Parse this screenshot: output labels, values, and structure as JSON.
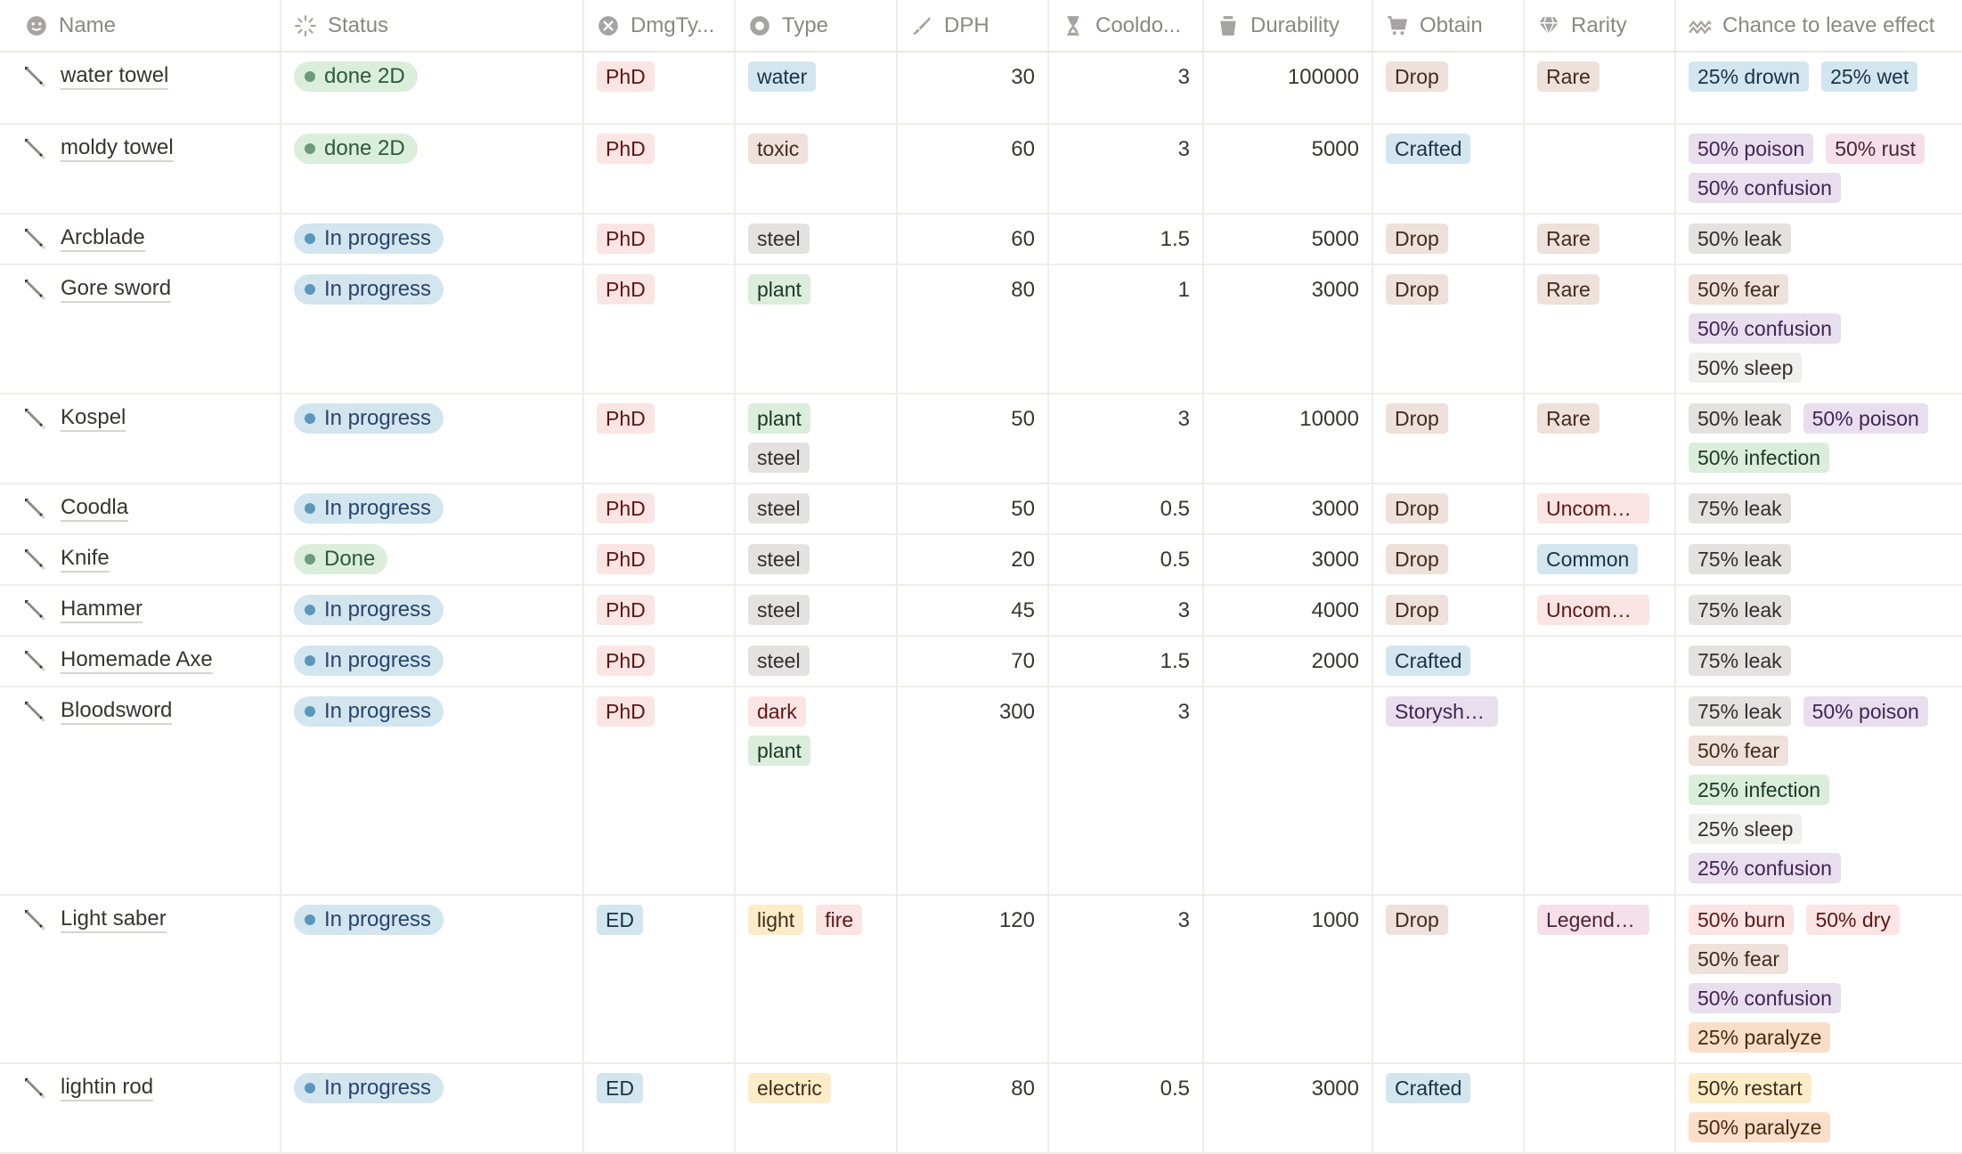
{
  "columns": [
    {
      "key": "name",
      "label": "Name",
      "icon": "face-icon"
    },
    {
      "key": "status",
      "label": "Status",
      "icon": "status-icon"
    },
    {
      "key": "dmg",
      "label": "DmgTy...",
      "icon": "x-circle-icon"
    },
    {
      "key": "type",
      "label": "Type",
      "icon": "circle-icon"
    },
    {
      "key": "dph",
      "label": "DPH",
      "icon": "knife-icon"
    },
    {
      "key": "cool",
      "label": "Cooldo...",
      "icon": "hourglass-icon"
    },
    {
      "key": "dur",
      "label": "Durability",
      "icon": "bucket-icon"
    },
    {
      "key": "obtain",
      "label": "Obtain",
      "icon": "cart-icon"
    },
    {
      "key": "rarity",
      "label": "Rarity",
      "icon": "gem-icon"
    },
    {
      "key": "chance",
      "label": "Chance to leave effect",
      "icon": "wave-icon"
    }
  ],
  "colors": {
    "red": "#fbe4e4",
    "red_text": "#5d1715",
    "blue": "#d3e5ef",
    "blue_text": "#183347",
    "gray": "#e3e2e0",
    "gray_text": "#32302c",
    "brown": "#eee0da",
    "brown_text": "#442a1e",
    "green": "#dbeddb",
    "green_text": "#1c3829",
    "yellow": "#fdecc8",
    "yellow_text": "#402c1b",
    "purple": "#e8deee",
    "purple_text": "#412454",
    "orange": "#fadec9",
    "orange_text": "#49290e",
    "pink": "#f5e0e9",
    "pink_text": "#4c2337",
    "light": "#efefed",
    "light_text": "#32302c"
  },
  "rows": [
    {
      "name": "water towel",
      "status": {
        "label": "done 2D",
        "color": "green"
      },
      "dmg": {
        "label": "PhD",
        "color": "red"
      },
      "type": [
        {
          "label": "water",
          "color": "blue"
        }
      ],
      "dph": "30",
      "cool": "3",
      "dur": "100000",
      "obtain": {
        "label": "Drop",
        "color": "brown"
      },
      "rarity": {
        "label": "Rare",
        "color": "brown"
      },
      "chance": [
        {
          "label": "25% drown",
          "color": "blue"
        },
        {
          "label": "25% wet",
          "color": "blue"
        }
      ],
      "height": 81
    },
    {
      "name": "moldy towel",
      "status": {
        "label": "done 2D",
        "color": "green"
      },
      "dmg": {
        "label": "PhD",
        "color": "red"
      },
      "type": [
        {
          "label": "toxic",
          "color": "brown"
        }
      ],
      "dph": "60",
      "cool": "3",
      "dur": "5000",
      "obtain": {
        "label": "Crafted",
        "color": "blue"
      },
      "rarity": null,
      "chance": [
        {
          "label": "50% poison",
          "color": "purple"
        },
        {
          "label": "50% rust",
          "color": "pink"
        },
        {
          "label": "50% confusion",
          "color": "purple"
        }
      ],
      "height": 101
    },
    {
      "name": "Arcblade",
      "status": {
        "label": "In progress",
        "color": "blue"
      },
      "dmg": {
        "label": "PhD",
        "color": "red"
      },
      "type": [
        {
          "label": "steel",
          "color": "gray"
        }
      ],
      "dph": "60",
      "cool": "1.5",
      "dur": "5000",
      "obtain": {
        "label": "Drop",
        "color": "brown"
      },
      "rarity": {
        "label": "Rare",
        "color": "brown"
      },
      "chance": [
        {
          "label": "50% leak",
          "color": "gray"
        }
      ],
      "height": 57
    },
    {
      "name": "Gore sword",
      "status": {
        "label": "In progress",
        "color": "blue"
      },
      "dmg": {
        "label": "PhD",
        "color": "red"
      },
      "type": [
        {
          "label": "plant",
          "color": "green"
        }
      ],
      "dph": "80",
      "cool": "1",
      "dur": "3000",
      "obtain": {
        "label": "Drop",
        "color": "brown"
      },
      "rarity": {
        "label": "Rare",
        "color": "brown"
      },
      "chance": [
        {
          "label": "50% fear",
          "color": "brown"
        },
        {
          "label": "50% confusion",
          "color": "purple"
        },
        {
          "label": "50% sleep",
          "color": "light"
        }
      ],
      "height": 145
    },
    {
      "name": "Kospel",
      "status": {
        "label": "In progress",
        "color": "blue"
      },
      "dmg": {
        "label": "PhD",
        "color": "red"
      },
      "type": [
        {
          "label": "plant",
          "color": "green"
        },
        {
          "label": "steel",
          "color": "gray"
        }
      ],
      "dph": "50",
      "cool": "3",
      "dur": "10000",
      "obtain": {
        "label": "Drop",
        "color": "brown"
      },
      "rarity": {
        "label": "Rare",
        "color": "brown"
      },
      "chance": [
        {
          "label": "50% leak",
          "color": "gray"
        },
        {
          "label": "50% poison",
          "color": "purple"
        },
        {
          "label": "50% infection",
          "color": "green"
        }
      ],
      "height": 101
    },
    {
      "name": "Coodla",
      "status": {
        "label": "In progress",
        "color": "blue"
      },
      "dmg": {
        "label": "PhD",
        "color": "red"
      },
      "type": [
        {
          "label": "steel",
          "color": "gray"
        }
      ],
      "dph": "50",
      "cool": "0.5",
      "dur": "3000",
      "obtain": {
        "label": "Drop",
        "color": "brown"
      },
      "rarity": {
        "label": "Uncomm...",
        "color": "red"
      },
      "chance": [
        {
          "label": "75% leak",
          "color": "gray"
        }
      ],
      "height": 57
    },
    {
      "name": "Knife",
      "status": {
        "label": "Done",
        "color": "green"
      },
      "dmg": {
        "label": "PhD",
        "color": "red"
      },
      "type": [
        {
          "label": "steel",
          "color": "gray"
        }
      ],
      "dph": "20",
      "cool": "0.5",
      "dur": "3000",
      "obtain": {
        "label": "Drop",
        "color": "brown"
      },
      "rarity": {
        "label": "Common",
        "color": "blue"
      },
      "chance": [
        {
          "label": "75% leak",
          "color": "gray"
        }
      ],
      "height": 57
    },
    {
      "name": "Hammer",
      "status": {
        "label": "In progress",
        "color": "blue"
      },
      "dmg": {
        "label": "PhD",
        "color": "red"
      },
      "type": [
        {
          "label": "steel",
          "color": "gray"
        }
      ],
      "dph": "45",
      "cool": "3",
      "dur": "4000",
      "obtain": {
        "label": "Drop",
        "color": "brown"
      },
      "rarity": {
        "label": "Uncomm...",
        "color": "red"
      },
      "chance": [
        {
          "label": "75% leak",
          "color": "gray"
        }
      ],
      "height": 57
    },
    {
      "name": "Homemade Axe",
      "status": {
        "label": "In progress",
        "color": "blue"
      },
      "dmg": {
        "label": "PhD",
        "color": "red"
      },
      "type": [
        {
          "label": "steel",
          "color": "gray"
        }
      ],
      "dph": "70",
      "cool": "1.5",
      "dur": "2000",
      "obtain": {
        "label": "Crafted",
        "color": "blue"
      },
      "rarity": null,
      "chance": [
        {
          "label": "75% leak",
          "color": "gray"
        }
      ],
      "height": 57
    },
    {
      "name": "Bloodsword",
      "status": {
        "label": "In progress",
        "color": "blue"
      },
      "dmg": {
        "label": "PhD",
        "color": "red"
      },
      "type": [
        {
          "label": "dark",
          "color": "red"
        },
        {
          "label": "plant",
          "color": "green"
        }
      ],
      "dph": "300",
      "cool": "3",
      "dur": "",
      "obtain": {
        "label": "Storysha...",
        "color": "purple"
      },
      "rarity": null,
      "chance": [
        {
          "label": "75% leak",
          "color": "gray"
        },
        {
          "label": "50% poison",
          "color": "purple"
        },
        {
          "label": "50% fear",
          "color": "brown"
        },
        {
          "label": "25% infection",
          "color": "green"
        },
        {
          "label": "25% sleep",
          "color": "light"
        },
        {
          "label": "25% confusion",
          "color": "purple"
        }
      ],
      "height": 234
    },
    {
      "name": "Light saber",
      "status": {
        "label": "In progress",
        "color": "blue"
      },
      "dmg": {
        "label": "ED",
        "color": "blue"
      },
      "type": [
        {
          "label": "light",
          "color": "yellow"
        },
        {
          "label": "fire",
          "color": "red"
        }
      ],
      "dph": "120",
      "cool": "3",
      "dur": "1000",
      "obtain": {
        "label": "Drop",
        "color": "brown"
      },
      "rarity": {
        "label": "Legendary",
        "color": "pink"
      },
      "chance": [
        {
          "label": "50% burn",
          "color": "red"
        },
        {
          "label": "50% dry",
          "color": "red"
        },
        {
          "label": "50% fear",
          "color": "brown"
        },
        {
          "label": "50% confusion",
          "color": "purple"
        },
        {
          "label": "25% paralyze",
          "color": "orange"
        }
      ],
      "height": 189
    },
    {
      "name": "lightin rod",
      "status": {
        "label": "In progress",
        "color": "blue"
      },
      "dmg": {
        "label": "ED",
        "color": "blue"
      },
      "type": [
        {
          "label": "electric",
          "color": "yellow"
        }
      ],
      "dph": "80",
      "cool": "0.5",
      "dur": "3000",
      "obtain": {
        "label": "Crafted",
        "color": "blue"
      },
      "rarity": null,
      "chance": [
        {
          "label": "50% restart",
          "color": "yellow"
        },
        {
          "label": "50% paralyze",
          "color": "orange"
        }
      ],
      "height": 101
    }
  ]
}
